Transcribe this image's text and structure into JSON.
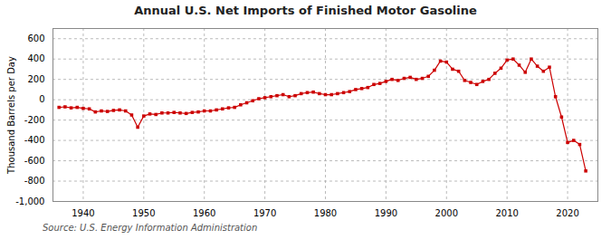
{
  "chart_data": {
    "type": "line",
    "title": "Annual U.S. Net Imports of Finished Motor Gasoline",
    "ylabel": "Thousand Barrels per Day",
    "source": "Source: U.S. Energy Information Administration",
    "color": "#cc0000",
    "marker": "square",
    "line_style": "solid",
    "grid": true,
    "xlim": [
      1935,
      2025
    ],
    "ylim": [
      -1000,
      700
    ],
    "xticks": [
      1940,
      1950,
      1960,
      1970,
      1980,
      1990,
      2000,
      2010,
      2020
    ],
    "yticks": [
      {
        "value": -1000,
        "label": "-1,000"
      },
      -800,
      -600,
      -400,
      -200,
      0,
      200,
      400,
      600
    ],
    "x": [
      1936,
      1937,
      1938,
      1939,
      1940,
      1941,
      1942,
      1943,
      1944,
      1945,
      1946,
      1947,
      1948,
      1949,
      1950,
      1951,
      1952,
      1953,
      1954,
      1955,
      1956,
      1957,
      1958,
      1959,
      1960,
      1961,
      1962,
      1963,
      1964,
      1965,
      1966,
      1967,
      1968,
      1969,
      1970,
      1971,
      1972,
      1973,
      1974,
      1975,
      1976,
      1977,
      1978,
      1979,
      1980,
      1981,
      1982,
      1983,
      1984,
      1985,
      1986,
      1987,
      1988,
      1989,
      1990,
      1991,
      1992,
      1993,
      1994,
      1995,
      1996,
      1997,
      1998,
      1999,
      2000,
      2001,
      2002,
      2003,
      2004,
      2005,
      2006,
      2007,
      2008,
      2009,
      2010,
      2011,
      2012,
      2013,
      2014,
      2015,
      2016,
      2017,
      2018,
      2019,
      2020,
      2021,
      2022,
      2023
    ],
    "values": [
      -75,
      -70,
      -80,
      -75,
      -85,
      -90,
      -120,
      -110,
      -115,
      -105,
      -100,
      -110,
      -150,
      -270,
      -160,
      -140,
      -145,
      -130,
      -130,
      -125,
      -130,
      -135,
      -125,
      -120,
      -110,
      -110,
      -100,
      -90,
      -80,
      -75,
      -50,
      -30,
      -10,
      10,
      20,
      30,
      40,
      50,
      30,
      40,
      60,
      70,
      75,
      60,
      50,
      50,
      60,
      70,
      80,
      100,
      110,
      120,
      150,
      160,
      180,
      200,
      190,
      210,
      220,
      200,
      210,
      230,
      290,
      380,
      370,
      300,
      280,
      190,
      170,
      150,
      180,
      200,
      260,
      310,
      390,
      400,
      340,
      270,
      400,
      330,
      280,
      320,
      30,
      -170,
      -420,
      -400,
      -440,
      -700
    ]
  }
}
